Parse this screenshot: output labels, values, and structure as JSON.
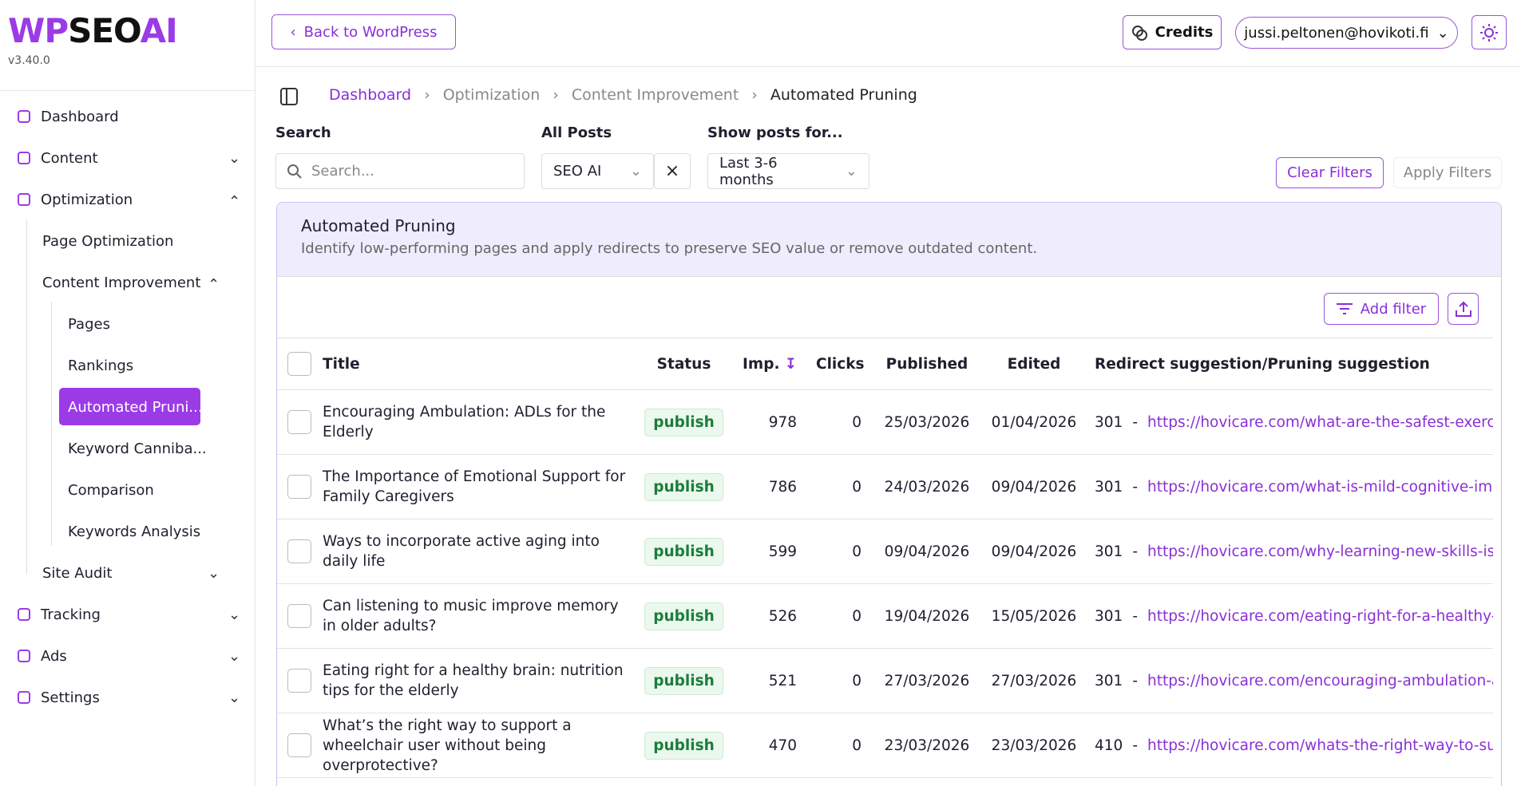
{
  "logo": {
    "parts": [
      "WP",
      "SEO",
      "AI"
    ],
    "version": "v3.40.0"
  },
  "nav": [
    {
      "label": "Dashboard",
      "level": 0
    },
    {
      "label": "Content",
      "level": 0,
      "toggle": "down"
    },
    {
      "label": "Optimization",
      "level": 0,
      "toggle": "up"
    },
    {
      "label": "Page Optimization",
      "level": 1
    },
    {
      "label": "Content Improvement",
      "level": 1,
      "toggle": "up"
    },
    {
      "label": "Pages",
      "level": 2
    },
    {
      "label": "Rankings",
      "level": 2
    },
    {
      "label": "Automated Pruni...",
      "level": 2,
      "active": true
    },
    {
      "label": "Keyword Canniba...",
      "level": 2
    },
    {
      "label": "Comparison",
      "level": 2
    },
    {
      "label": "Keywords Analysis",
      "level": 2
    },
    {
      "label": "Site Audit",
      "level": 1,
      "toggle": "down"
    },
    {
      "label": "Tracking",
      "level": 0,
      "toggle": "down"
    },
    {
      "label": "Ads",
      "level": 0,
      "toggle": "down"
    },
    {
      "label": "Settings",
      "level": 0,
      "toggle": "down"
    }
  ],
  "topbar": {
    "back": "Back to WordPress",
    "credits": "Credits",
    "user": "jussi.peltonen@hovikoti.fi"
  },
  "breadcrumb": [
    "Dashboard",
    "Optimization",
    "Content Improvement",
    "Automated Pruning"
  ],
  "filters": {
    "search_label": "Search",
    "search_placeholder": "Search...",
    "posts_label": "All Posts",
    "posts_value": "SEO AI",
    "period_label": "Show posts for...",
    "period_value": "Last 3-6 months",
    "clear": "Clear Filters",
    "apply": "Apply Filters"
  },
  "panel": {
    "title": "Automated Pruning",
    "description": "Identify low-performing pages and apply redirects to preserve SEO value or remove outdated content.",
    "add_filter": "Add filter"
  },
  "table": {
    "columns": [
      "Title",
      "Status",
      "Imp.",
      "Clicks",
      "Published",
      "Edited",
      "Redirect suggestion/Pruning suggestion"
    ],
    "rows": [
      [
        "Encouraging Ambulation: ADLs for the Elderly",
        "publish",
        978,
        0,
        "25/03/2026",
        "01/04/2026",
        "301",
        "https://hovicare.com/what-are-the-safest-exercises-"
      ],
      [
        "The Importance of Emotional Support for Family Caregivers",
        "publish",
        786,
        0,
        "24/03/2026",
        "09/04/2026",
        "301",
        "https://hovicare.com/what-is-mild-cognitive-impai"
      ],
      [
        "Ways to incorporate active aging into daily life",
        "publish",
        599,
        0,
        "09/04/2026",
        "09/04/2026",
        "301",
        "https://hovicare.com/why-learning-new-skills-is-a-k"
      ],
      [
        "Can listening to music improve memory in older adults?",
        "publish",
        526,
        0,
        "19/04/2026",
        "15/05/2026",
        "301",
        "https://hovicare.com/eating-right-for-a-healthy-brain"
      ],
      [
        "Eating right for a healthy brain: nutrition tips for the elderly",
        "publish",
        521,
        0,
        "27/03/2026",
        "27/03/2026",
        "301",
        "https://hovicare.com/encouraging-ambulation-adls-"
      ],
      [
        "What’s the right way to support a wheelchair user without being overprotective?",
        "publish",
        470,
        0,
        "23/03/2026",
        "23/03/2026",
        "410",
        "https://hovicare.com/whats-the-right-way-to-suppo"
      ]
    ]
  }
}
